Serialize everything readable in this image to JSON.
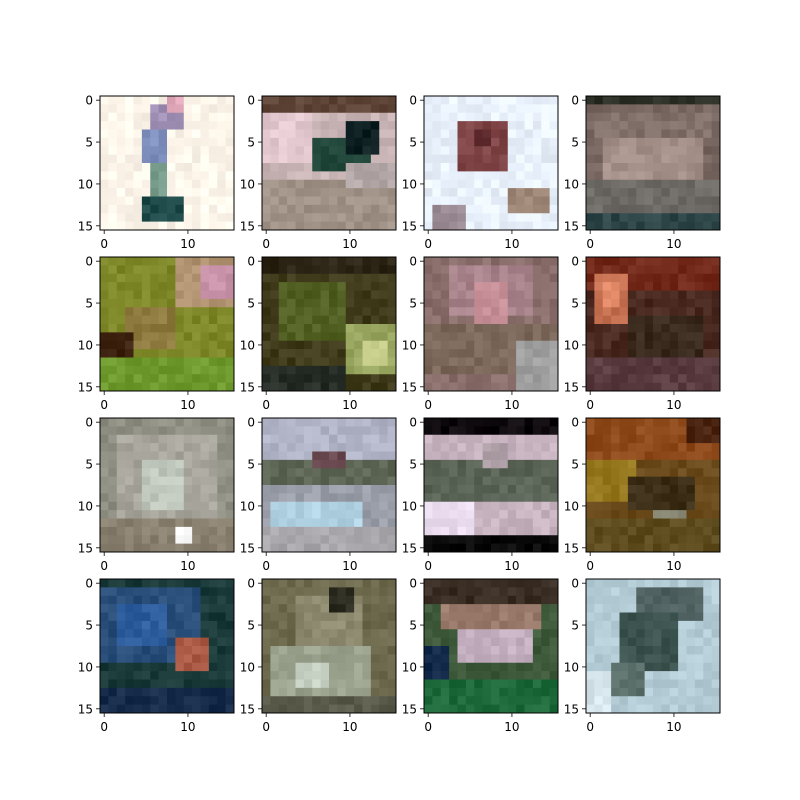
{
  "chart_data": {
    "type": "heatmap",
    "layout": {
      "rows": 4,
      "cols": 4
    },
    "image_size": [
      16,
      16
    ],
    "x_ticks": [
      {
        "value": 0,
        "label": "0"
      },
      {
        "value": 10,
        "label": "10"
      }
    ],
    "y_ticks": [
      {
        "value": 0,
        "label": "0"
      },
      {
        "value": 5,
        "label": "5"
      },
      {
        "value": 10,
        "label": "10"
      },
      {
        "value": 15,
        "label": "15"
      }
    ],
    "xlim": [
      -0.5,
      15.5
    ],
    "ylim": [
      15.5,
      -0.5
    ],
    "grid": false,
    "panels": [
      {
        "bg": "#fdf5ea",
        "blobs": [
          {
            "x": 6,
            "y": 1,
            "w": 4,
            "h": 3,
            "c": "#9f8fb4"
          },
          {
            "x": 5,
            "y": 4,
            "w": 3,
            "h": 4,
            "c": "#7e8fbd"
          },
          {
            "x": 6,
            "y": 8,
            "w": 2,
            "h": 4,
            "c": "#789d8c"
          },
          {
            "x": 5,
            "y": 12,
            "w": 5,
            "h": 3,
            "c": "#1e4a4a"
          },
          {
            "x": 8,
            "y": 0,
            "w": 2,
            "h": 2,
            "c": "#e0a8b8"
          }
        ]
      },
      {
        "bg": "#c8b4b4",
        "blobs": [
          {
            "x": 0,
            "y": 0,
            "w": 16,
            "h": 2,
            "c": "#5e4436"
          },
          {
            "x": 0,
            "y": 2,
            "w": 6,
            "h": 6,
            "c": "#e4c8d0"
          },
          {
            "x": 6,
            "y": 5,
            "w": 7,
            "h": 4,
            "c": "#1e4438"
          },
          {
            "x": 10,
            "y": 3,
            "w": 4,
            "h": 4,
            "c": "#0e2022"
          },
          {
            "x": 0,
            "y": 10,
            "w": 16,
            "h": 6,
            "c": "#a09286"
          },
          {
            "x": 10,
            "y": 8,
            "w": 6,
            "h": 3,
            "c": "#b4a8a8"
          }
        ]
      },
      {
        "bg": "#e8f0fc",
        "blobs": [
          {
            "x": 4,
            "y": 3,
            "w": 6,
            "h": 6,
            "c": "#7e4446"
          },
          {
            "x": 6,
            "y": 4,
            "w": 2,
            "h": 2,
            "c": "#5e2a2e"
          },
          {
            "x": 1,
            "y": 13,
            "w": 4,
            "h": 3,
            "c": "#9a8a94"
          },
          {
            "x": 10,
            "y": 11,
            "w": 5,
            "h": 3,
            "c": "#a08878"
          }
        ]
      },
      {
        "bg": "#776560",
        "blobs": [
          {
            "x": 0,
            "y": 0,
            "w": 16,
            "h": 1,
            "c": "#2c3026"
          },
          {
            "x": 1,
            "y": 2,
            "w": 14,
            "h": 3,
            "c": "#82706a"
          },
          {
            "x": 2,
            "y": 5,
            "w": 12,
            "h": 5,
            "c": "#a49088"
          },
          {
            "x": 0,
            "y": 10,
            "w": 16,
            "h": 4,
            "c": "#6e6a66"
          },
          {
            "x": 0,
            "y": 14,
            "w": 16,
            "h": 2,
            "c": "#2e4648"
          }
        ]
      },
      {
        "bg": "#7e8828",
        "blobs": [
          {
            "x": 9,
            "y": 0,
            "w": 7,
            "h": 6,
            "c": "#b09270"
          },
          {
            "x": 12,
            "y": 1,
            "w": 4,
            "h": 4,
            "c": "#c690a6"
          },
          {
            "x": 3,
            "y": 6,
            "w": 6,
            "h": 5,
            "c": "#8e7a3e"
          },
          {
            "x": 0,
            "y": 9,
            "w": 4,
            "h": 3,
            "c": "#3e2210"
          },
          {
            "x": 0,
            "y": 12,
            "w": 16,
            "h": 4,
            "c": "#6e9a2e"
          }
        ]
      },
      {
        "bg": "#3e3a1a",
        "blobs": [
          {
            "x": 0,
            "y": 0,
            "w": 16,
            "h": 2,
            "c": "#2c2414"
          },
          {
            "x": 2,
            "y": 3,
            "w": 8,
            "h": 7,
            "c": "#526024"
          },
          {
            "x": 10,
            "y": 8,
            "w": 6,
            "h": 6,
            "c": "#98a660"
          },
          {
            "x": 12,
            "y": 10,
            "w": 3,
            "h": 3,
            "c": "#c6cc8a"
          },
          {
            "x": 0,
            "y": 13,
            "w": 10,
            "h": 3,
            "c": "#262c26"
          }
        ]
      },
      {
        "bg": "#8a6e6c",
        "blobs": [
          {
            "x": 3,
            "y": 1,
            "w": 10,
            "h": 6,
            "c": "#a8828a"
          },
          {
            "x": 6,
            "y": 3,
            "w": 4,
            "h": 5,
            "c": "#c89098"
          },
          {
            "x": 0,
            "y": 8,
            "w": 16,
            "h": 6,
            "c": "#7c685a"
          },
          {
            "x": 11,
            "y": 10,
            "w": 5,
            "h": 6,
            "c": "#a0a0a0"
          }
        ]
      },
      {
        "bg": "#4a2a20",
        "blobs": [
          {
            "x": 0,
            "y": 0,
            "w": 16,
            "h": 4,
            "c": "#742a1a"
          },
          {
            "x": 1,
            "y": 2,
            "w": 4,
            "h": 6,
            "c": "#c47050"
          },
          {
            "x": 2,
            "y": 3,
            "w": 2,
            "h": 3,
            "c": "#e8906e"
          },
          {
            "x": 5,
            "y": 7,
            "w": 9,
            "h": 6,
            "c": "#3a2a1e"
          },
          {
            "x": 0,
            "y": 12,
            "w": 16,
            "h": 4,
            "c": "#5a3c40"
          }
        ]
      },
      {
        "bg": "#8e8e82",
        "blobs": [
          {
            "x": 2,
            "y": 2,
            "w": 12,
            "h": 10,
            "c": "#a8a69c"
          },
          {
            "x": 5,
            "y": 5,
            "w": 5,
            "h": 6,
            "c": "#c0c8be"
          },
          {
            "x": 0,
            "y": 12,
            "w": 16,
            "h": 4,
            "c": "#8a8070"
          },
          {
            "x": 9,
            "y": 13,
            "w": 2,
            "h": 2,
            "c": "#ffffff"
          }
        ]
      },
      {
        "bg": "#9a9ea8",
        "blobs": [
          {
            "x": 0,
            "y": 0,
            "w": 16,
            "h": 5,
            "c": "#b0b4c6"
          },
          {
            "x": 0,
            "y": 5,
            "w": 16,
            "h": 3,
            "c": "#5e6656"
          },
          {
            "x": 6,
            "y": 4,
            "w": 4,
            "h": 2,
            "c": "#6a4a50"
          },
          {
            "x": 1,
            "y": 10,
            "w": 11,
            "h": 3,
            "c": "#b0d2e2"
          },
          {
            "x": 0,
            "y": 13,
            "w": 16,
            "h": 3,
            "c": "#a8a6aa"
          }
        ]
      },
      {
        "bg": "#c8b4c0",
        "blobs": [
          {
            "x": 0,
            "y": 0,
            "w": 16,
            "h": 2,
            "c": "#0e0a0e"
          },
          {
            "x": 0,
            "y": 14,
            "w": 16,
            "h": 2,
            "c": "#0a0a0a"
          },
          {
            "x": 0,
            "y": 5,
            "w": 16,
            "h": 5,
            "c": "#5a6456"
          },
          {
            "x": 0,
            "y": 10,
            "w": 6,
            "h": 4,
            "c": "#ecdcf0"
          },
          {
            "x": 7,
            "y": 3,
            "w": 3,
            "h": 3,
            "c": "#b0a0a8"
          }
        ]
      },
      {
        "bg": "#6a4a1a",
        "blobs": [
          {
            "x": 0,
            "y": 0,
            "w": 16,
            "h": 5,
            "c": "#8e4a1a"
          },
          {
            "x": 12,
            "y": 0,
            "w": 4,
            "h": 3,
            "c": "#4a2410"
          },
          {
            "x": 0,
            "y": 5,
            "w": 6,
            "h": 5,
            "c": "#96781e"
          },
          {
            "x": 5,
            "y": 7,
            "w": 8,
            "h": 4,
            "c": "#3e3018"
          },
          {
            "x": 8,
            "y": 11,
            "w": 4,
            "h": 3,
            "c": "#8a8a76"
          },
          {
            "x": 0,
            "y": 12,
            "w": 16,
            "h": 4,
            "c": "#5e4c1e"
          }
        ]
      },
      {
        "bg": "#1a3a3a",
        "blobs": [
          {
            "x": 0,
            "y": 1,
            "w": 12,
            "h": 9,
            "c": "#2a4e7a"
          },
          {
            "x": 2,
            "y": 3,
            "w": 6,
            "h": 5,
            "c": "#2e5e9e"
          },
          {
            "x": 9,
            "y": 7,
            "w": 4,
            "h": 4,
            "c": "#aa5a44"
          },
          {
            "x": 0,
            "y": 13,
            "w": 16,
            "h": 3,
            "c": "#162a4a"
          }
        ]
      },
      {
        "bg": "#6e6a4e",
        "blobs": [
          {
            "x": 4,
            "y": 2,
            "w": 8,
            "h": 6,
            "c": "#8e8a70"
          },
          {
            "x": 8,
            "y": 1,
            "w": 3,
            "h": 3,
            "c": "#2a2a1e"
          },
          {
            "x": 1,
            "y": 8,
            "w": 12,
            "h": 6,
            "c": "#9aa28e"
          },
          {
            "x": 4,
            "y": 10,
            "w": 4,
            "h": 3,
            "c": "#c8d2c4"
          },
          {
            "x": 0,
            "y": 14,
            "w": 16,
            "h": 2,
            "c": "#5a5a4a"
          }
        ]
      },
      {
        "bg": "#3e5a3a",
        "blobs": [
          {
            "x": 0,
            "y": 0,
            "w": 16,
            "h": 3,
            "c": "#3a2e24"
          },
          {
            "x": 2,
            "y": 3,
            "w": 12,
            "h": 3,
            "c": "#9a7a6a"
          },
          {
            "x": 4,
            "y": 6,
            "w": 9,
            "h": 4,
            "c": "#c4b0c0"
          },
          {
            "x": 0,
            "y": 8,
            "w": 3,
            "h": 6,
            "c": "#142a4a"
          },
          {
            "x": 0,
            "y": 12,
            "w": 16,
            "h": 4,
            "c": "#1e6a3a"
          }
        ]
      },
      {
        "bg": "#b4ccd6",
        "blobs": [
          {
            "x": 6,
            "y": 1,
            "w": 8,
            "h": 4,
            "c": "#4e6060"
          },
          {
            "x": 4,
            "y": 4,
            "w": 7,
            "h": 7,
            "c": "#3e5450"
          },
          {
            "x": 3,
            "y": 10,
            "w": 4,
            "h": 4,
            "c": "#5a6e6a"
          },
          {
            "x": 0,
            "y": 11,
            "w": 3,
            "h": 5,
            "c": "#d6e6ec"
          }
        ]
      }
    ]
  }
}
